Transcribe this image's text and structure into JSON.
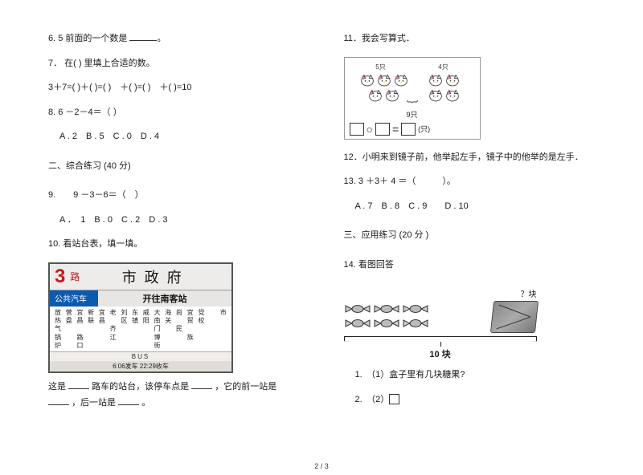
{
  "left": {
    "q6": "6. 5 前面的一个数是 ",
    "q6_end": "。",
    "q7": "7． 在(  ) 里填上合适的数。",
    "q7_eq": "3＋7=(  )＋(  )=(  )　＋(  )=(  )　＋(  )=10",
    "q8": "8. 6 －2－4＝（  ）",
    "q8_opts": "A . 2　B . 5　C . 0　D . 4",
    "sec2": "二、综合练习  (40 分)",
    "q9": "9.　　9 －3－6＝（　）",
    "q9_opts": "A ．　1　B . 0　C . 2　D . 3",
    "q10": "10.  看站台表，填一填。",
    "bus": {
      "route_num": "3",
      "route_lu": "路",
      "title": "市政府",
      "lab": "公共汽车",
      "dest": "开往南客站",
      "stops_r1": [
        "放",
        "营",
        "宜",
        "新",
        "宜",
        "老",
        "刘",
        "东",
        "威",
        "大",
        "海",
        "尚",
        "宜",
        "党",
        "",
        "市"
      ],
      "stops_r2": [
        "热",
        "盘",
        "昌",
        "联",
        "昌",
        "",
        "区",
        "镇",
        "阳",
        "南",
        "关",
        "",
        "贸",
        "校",
        "",
        ""
      ],
      "stops_r3": [
        "气",
        "",
        "",
        "",
        "",
        "齐",
        "",
        "",
        "",
        "门",
        "",
        "民",
        "",
        "",
        "",
        ""
      ],
      "stops_r4": [
        "锅",
        "",
        "路",
        "",
        "",
        "江",
        "",
        "",
        "",
        "博",
        "",
        "",
        "族",
        "",
        "",
        ""
      ],
      "stops_r5": [
        "炉",
        "",
        "口",
        "",
        "",
        "",
        "",
        "",
        "",
        "街",
        "",
        "",
        "",
        "",
        "",
        ""
      ],
      "bus_line": "BUS",
      "time": "6:06发车  22:29收车"
    },
    "q10_txt_a": "这是 ",
    "q10_txt_b": "路车的站台，该停车点是 ",
    "q10_txt_c": "，它的前一站是 ",
    "q10_txt_d": "，后一站是 ",
    "q10_txt_e": "。"
  },
  "right": {
    "q11": "11．我会写算式．",
    "kitty": {
      "left_label": "5只",
      "right_label": "4只",
      "left_count": 5,
      "right_count": 4,
      "total_label": "9只",
      "unit": "(只)"
    },
    "q12": "12．小明来到镜子前，他举起左手，镜子中的他举的是左手．",
    "q13": "13. 3 ＋3＋ 4 ＝（　　　）。",
    "q13_opts": "A . 7　B . 8　C . 9　　D . 10",
    "sec3": "三、应用练习  (20 分 )",
    "q14": "14.  看图回答",
    "candy": {
      "q_label": "？块",
      "total": "10 块"
    },
    "q14_1": "1.　（1）盒子里有几块糖果?",
    "q14_2": "2.　（2）"
  },
  "footer": "2 / 3",
  "colors": {
    "text": "#1a1a1a",
    "bus_red": "#c21b1b",
    "bus_blue": "#0a5ab0",
    "kitty_pink": "#e48ab3",
    "kitty_outline": "#333333"
  }
}
